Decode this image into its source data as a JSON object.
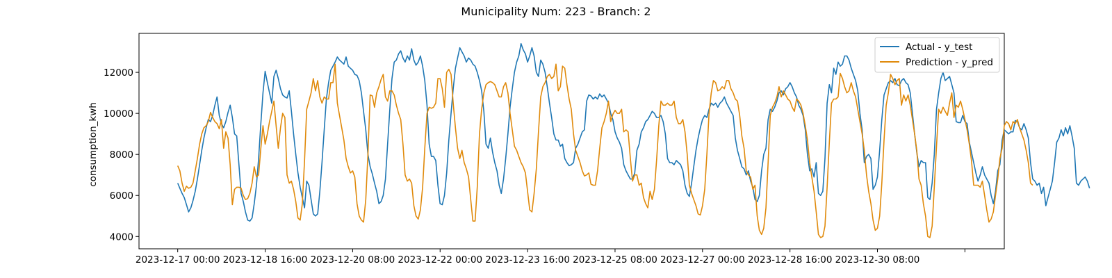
{
  "chart_data": {
    "type": "line",
    "title": "Municipality Num: 223 - Branch: 2",
    "xlabel": "",
    "ylabel": "consumption_kwh",
    "ylim": [
      3400,
      13900
    ],
    "yticks": [
      4000,
      6000,
      8000,
      10000,
      12000
    ],
    "xticks": [
      "2023-12-17 00:00",
      "2023-12-18 16:00",
      "2023-12-20 08:00",
      "2023-12-22 00:00",
      "2023-12-23 16:00",
      "2023-12-25 08:00",
      "2023-12-27 00:00",
      "2023-12-28 16:00",
      "2023-12-30 08:00",
      ""
    ],
    "xtick_hours": [
      0,
      40,
      80,
      120,
      160,
      200,
      240,
      280,
      320,
      360
    ],
    "xlim_hours": [
      -17.7,
      378
    ],
    "grid": false,
    "legend": {
      "placement": "top-right"
    },
    "colors": {
      "actual": "#1f77b4",
      "prediction": "#e08a0b"
    },
    "x_start": "2023-12-17 00:00",
    "x_step_hours": 1,
    "series": [
      {
        "name": "Actual - y_test",
        "values": [
          6600,
          6350,
          6100,
          5900,
          5550,
          5200,
          5400,
          5750,
          6200,
          6800,
          7500,
          8200,
          8800,
          9300,
          9700,
          9600,
          9900,
          10400,
          10800,
          9900,
          9500,
          9300,
          9600,
          10050,
          10400,
          9800,
          9000,
          8900,
          7500,
          6100,
          5700,
          5200,
          4800,
          4750,
          4900,
          5600,
          6500,
          7800,
          9500,
          11000,
          12050,
          11500,
          11000,
          10500,
          11800,
          12100,
          11700,
          11200,
          10900,
          10800,
          10750,
          11100,
          10100,
          9000,
          8000,
          7100,
          6400,
          5900,
          5400,
          6700,
          6500,
          5800,
          5100,
          5000,
          5100,
          6200,
          7600,
          9200,
          10700,
          11500,
          12100,
          12300,
          12500,
          12750,
          12600,
          12500,
          12400,
          12750,
          12300,
          12200,
          12100,
          11900,
          11850,
          11600,
          11000,
          10100,
          9200,
          8000,
          7400,
          7050,
          6600,
          6200,
          5600,
          5700,
          6000,
          6800,
          8500,
          10200,
          11700,
          12500,
          12600,
          12900,
          13050,
          12700,
          12500,
          12800,
          12600,
          13150,
          12600,
          12350,
          12500,
          12800,
          12300,
          11600,
          10400,
          8500,
          7900,
          7900,
          7700,
          6500,
          5600,
          5550,
          6000,
          7100,
          8700,
          10000,
          11200,
          12200,
          12700,
          13200,
          13000,
          12800,
          12500,
          12700,
          12600,
          12400,
          12300,
          12000,
          11600,
          11100,
          10100,
          8500,
          8300,
          8800,
          8100,
          7600,
          7200,
          6500,
          6100,
          6800,
          7800,
          9000,
          10300,
          11200,
          12000,
          12500,
          12800,
          13400,
          13100,
          12900,
          12500,
          12800,
          13200,
          12800,
          12000,
          11800,
          12600,
          12400,
          12000,
          11300,
          10500,
          9800,
          9000,
          8700,
          8700,
          8400,
          8500,
          7800,
          7600,
          7450,
          7500,
          7600,
          8300,
          8500,
          8800,
          9100,
          9200,
          10600,
          10900,
          10850,
          10700,
          10800,
          10700,
          10950,
          10800,
          10900,
          10700,
          10500,
          10000,
          9700,
          9100,
          8800,
          8600,
          8300,
          7500,
          7200,
          7000,
          6800,
          6800,
          7100,
          8200,
          8500,
          9100,
          9300,
          9600,
          9700,
          9900,
          10100,
          10000,
          9800,
          9800,
          9900,
          9600,
          9000,
          7800,
          7600,
          7600,
          7500,
          7700,
          7600,
          7500,
          7200,
          6500,
          6100,
          5950,
          6600,
          7400,
          8200,
          8800,
          9300,
          9700,
          9900,
          9800,
          10200,
          10500,
          10400,
          10500,
          10300,
          10500,
          10600,
          10800,
          10500,
          10300,
          10100,
          9900,
          8800,
          8200,
          7800,
          7400,
          7300,
          7000,
          7200,
          6700,
          6400,
          5800,
          5700,
          6000,
          7200,
          8000,
          8300,
          9700,
          10200,
          10100,
          10300,
          10600,
          11000,
          11100,
          10900,
          11200,
          11300,
          11500,
          11300,
          11000,
          10800,
          10400,
          10200,
          9900,
          9200,
          8000,
          7200,
          7300,
          6900,
          7600,
          6100,
          6000,
          6200,
          7800,
          10500,
          11400,
          11000,
          12200,
          11900,
          12500,
          12300,
          12400,
          12800,
          12800,
          12600,
          12200,
          11900,
          11600,
          11100,
          10000,
          9200,
          7600,
          7900,
          8000,
          7800,
          6300,
          6500,
          6900,
          8200,
          9700,
          10900,
          11200,
          11500,
          11600,
          11500,
          11700,
          11400,
          11350,
          11600,
          11700,
          11500,
          11400,
          11000,
          10000,
          9000,
          8100,
          7400,
          7700,
          7600,
          7600,
          5900,
          5800,
          6600,
          8000,
          10200,
          11000,
          11700,
          12000,
          11600,
          11700,
          11800,
          11400,
          11000,
          9600,
          9550,
          9550,
          9900,
          9600,
          9500,
          8600,
          8100,
          7600,
          7100,
          6700,
          7000,
          7400,
          7000,
          6800,
          6600,
          6000,
          5600,
          6200,
          7200,
          7500,
          8700,
          9200,
          9100,
          9000,
          9100,
          9100,
          9650,
          9600,
          9300,
          9200,
          9500,
          9200,
          8800,
          7600,
          6800,
          6700,
          6500,
          6600,
          6100,
          6400,
          5500,
          5900,
          6300,
          6700,
          7600,
          8600,
          8800,
          9200,
          8900,
          9300,
          9000,
          9400,
          8900,
          8300,
          6600,
          6500,
          6700,
          6800,
          6900,
          6700,
          6350
        ]
      },
      {
        "name": "Prediction - y_pred",
        "values": [
          7450,
          7200,
          6600,
          6200,
          6450,
          6350,
          6400,
          6600,
          7200,
          7800,
          8500,
          9000,
          9300,
          9400,
          9600,
          10050,
          9800,
          9600,
          9500,
          9250,
          9700,
          8300,
          9100,
          8800,
          7500,
          5550,
          6300,
          6400,
          6400,
          6350,
          6000,
          5800,
          5850,
          6100,
          6600,
          7400,
          6900,
          7000,
          8300,
          9400,
          8500,
          9000,
          9600,
          10100,
          10600,
          9400,
          8300,
          9300,
          10000,
          9800,
          7000,
          6600,
          6700,
          6300,
          5700,
          4900,
          4800,
          5600,
          7700,
          10200,
          10600,
          11000,
          11700,
          11100,
          11600,
          10800,
          10500,
          10800,
          10700,
          10700,
          11500,
          11500,
          12400,
          10500,
          9900,
          9300,
          8700,
          7800,
          7400,
          7100,
          7200,
          6900,
          5600,
          5000,
          4800,
          4700,
          5800,
          8000,
          10900,
          10850,
          10300,
          11000,
          11300,
          11650,
          11900,
          10800,
          10600,
          11100,
          11100,
          10900,
          10400,
          10000,
          9700,
          8500,
          7000,
          6700,
          6800,
          6600,
          5500,
          5000,
          4850,
          5300,
          6400,
          8300,
          10000,
          10300,
          10250,
          10300,
          10500,
          11700,
          11700,
          11200,
          10300,
          12000,
          12150,
          11900,
          10500,
          9300,
          8300,
          7800,
          8200,
          7600,
          7300,
          6900,
          5800,
          4750,
          4750,
          6400,
          9000,
          10200,
          11000,
          11400,
          11500,
          11550,
          11500,
          11400,
          11100,
          10800,
          10800,
          11300,
          11500,
          11000,
          10000,
          9200,
          8400,
          8200,
          7900,
          7600,
          7400,
          7100,
          6200,
          5300,
          5200,
          6100,
          7300,
          9100,
          10800,
          11300,
          11500,
          11800,
          11900,
          11700,
          11800,
          12400,
          11100,
          11300,
          12300,
          12200,
          11400,
          10700,
          10200,
          9000,
          8200,
          7900,
          7600,
          7200,
          6950,
          7000,
          7100,
          6550,
          6500,
          6500,
          7200,
          8300,
          9300,
          9600,
          10000,
          10600,
          9600,
          9950,
          10150,
          10000,
          10000,
          10200,
          9100,
          9200,
          9100,
          7800,
          6700,
          7000,
          7000,
          6500,
          6600,
          5900,
          5600,
          5400,
          6200,
          5800,
          6300,
          7700,
          9400,
          10600,
          10400,
          10400,
          10500,
          10400,
          10400,
          10600,
          9800,
          9500,
          9500,
          9700,
          9100,
          8000,
          6500,
          6100,
          5800,
          5500,
          5100,
          5050,
          5500,
          6300,
          8000,
          10000,
          11000,
          11600,
          11500,
          11100,
          11150,
          11300,
          11200,
          11600,
          11600,
          11200,
          11000,
          10700,
          10600,
          9900,
          8900,
          8300,
          7200,
          7000,
          6900,
          6300,
          6500,
          5000,
          4300,
          4100,
          4400,
          5400,
          7600,
          9900,
          10300,
          10500,
          10800,
          11300,
          10800,
          11100,
          10900,
          10700,
          10600,
          10300,
          10100,
          10700,
          10600,
          10400,
          10000,
          9400,
          8700,
          7600,
          6900,
          6200,
          5200,
          4100,
          3950,
          4000,
          4500,
          6400,
          8600,
          10500,
          10700,
          10700,
          10800,
          11950,
          11700,
          11300,
          11000,
          11100,
          11500,
          11100,
          10800,
          10200,
          9600,
          9000,
          8200,
          7000,
          6200,
          5600,
          4800,
          4300,
          4400,
          5000,
          6600,
          8700,
          10400,
          11000,
          11900,
          11700,
          11400,
          11600,
          11700,
          10400,
          10900,
          10600,
          10900,
          10400,
          9700,
          9000,
          8200,
          6800,
          6500,
          5600,
          5000,
          4000,
          3950,
          4500,
          6400,
          8400,
          10200,
          10000,
          10300,
          10100,
          9900,
          10500,
          11000,
          9800,
          10400,
          10300,
          10600,
          10200,
          9700,
          9200,
          8500,
          7700,
          6500,
          6500,
          6500,
          6400,
          6700,
          6000,
          5300,
          4700,
          4850,
          5200,
          6000,
          6800,
          7800,
          8300,
          9400,
          9600,
          9500,
          9200,
          9600,
          9500,
          9700,
          9300,
          9000,
          8700,
          8200,
          7600,
          6600,
          6500
        ]
      }
    ]
  }
}
